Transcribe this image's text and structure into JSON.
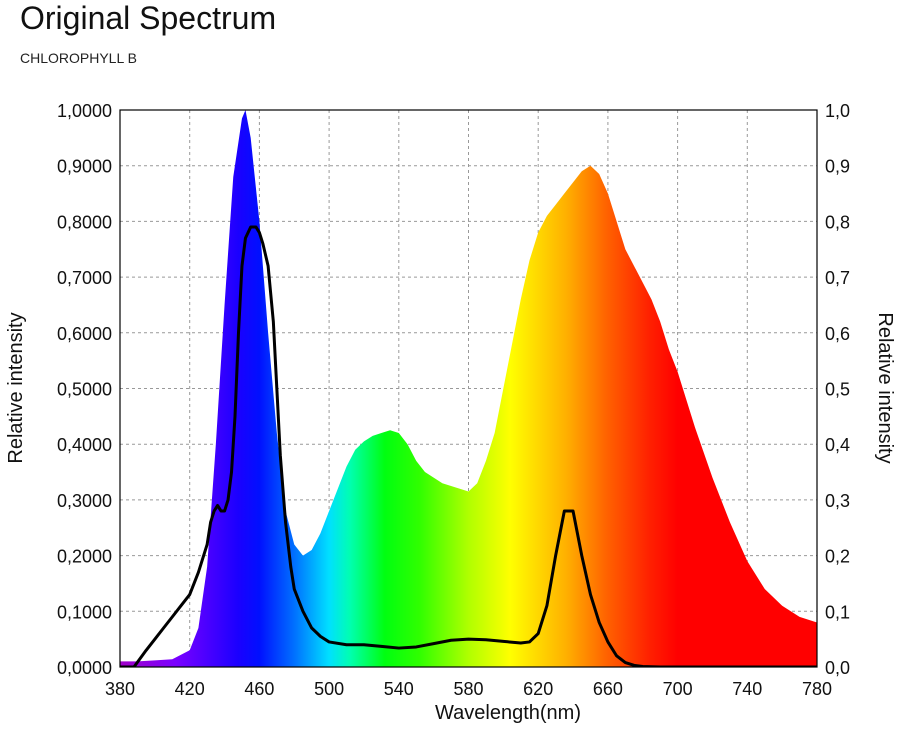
{
  "chart_data": {
    "type": "area",
    "title": "Original Spectrum",
    "subtitle": "CHLOROPHYLL B",
    "xlabel": "Wavelength(nm)",
    "ylabel": "Relative intensity",
    "ylabel_right": "Relative intensity",
    "xlim": [
      380,
      780
    ],
    "ylim": [
      0,
      1
    ],
    "x_ticks": [
      380,
      420,
      460,
      500,
      540,
      580,
      620,
      660,
      700,
      740,
      780
    ],
    "y_ticks_left": [
      "0,0000",
      "0,1000",
      "0,2000",
      "0,3000",
      "0,4000",
      "0,5000",
      "0,6000",
      "0,7000",
      "0,8000",
      "0,9000",
      "1,0000"
    ],
    "y_ticks_right": [
      "0,0",
      "0,1",
      "0,2",
      "0,3",
      "0,4",
      "0,5",
      "0,6",
      "0,7",
      "0,8",
      "0,9",
      "1,0"
    ],
    "grid": true,
    "series": [
      {
        "style": "spectrum-filled-area",
        "x": [
          380,
          390,
          400,
          410,
          420,
          425,
          430,
          435,
          440,
          445,
          450,
          452,
          455,
          460,
          465,
          470,
          475,
          480,
          485,
          490,
          495,
          500,
          505,
          510,
          515,
          520,
          525,
          530,
          535,
          540,
          545,
          550,
          555,
          560,
          565,
          570,
          575,
          580,
          585,
          590,
          595,
          600,
          605,
          610,
          615,
          620,
          625,
          630,
          635,
          640,
          645,
          650,
          655,
          660,
          665,
          670,
          675,
          680,
          685,
          690,
          695,
          700,
          710,
          720,
          730,
          740,
          750,
          760,
          770,
          780
        ],
        "y": [
          0.01,
          0.01,
          0.012,
          0.014,
          0.03,
          0.07,
          0.18,
          0.4,
          0.65,
          0.88,
          0.985,
          1.0,
          0.95,
          0.8,
          0.6,
          0.42,
          0.28,
          0.22,
          0.2,
          0.21,
          0.24,
          0.28,
          0.32,
          0.36,
          0.39,
          0.405,
          0.415,
          0.42,
          0.425,
          0.42,
          0.4,
          0.37,
          0.35,
          0.34,
          0.33,
          0.325,
          0.32,
          0.315,
          0.33,
          0.37,
          0.42,
          0.5,
          0.58,
          0.66,
          0.73,
          0.78,
          0.81,
          0.83,
          0.85,
          0.87,
          0.89,
          0.9,
          0.885,
          0.85,
          0.8,
          0.75,
          0.72,
          0.69,
          0.66,
          0.62,
          0.57,
          0.53,
          0.43,
          0.34,
          0.26,
          0.19,
          0.14,
          0.11,
          0.09,
          0.08
        ]
      },
      {
        "style": "black-line",
        "x": [
          380,
          388,
          395,
          400,
          405,
          410,
          415,
          420,
          425,
          430,
          432,
          434,
          436,
          438,
          440,
          442,
          444,
          446,
          448,
          450,
          452,
          455,
          458,
          460,
          462,
          465,
          468,
          470,
          472,
          475,
          478,
          480,
          485,
          490,
          495,
          500,
          510,
          520,
          530,
          540,
          550,
          560,
          570,
          580,
          590,
          600,
          610,
          615,
          620,
          625,
          630,
          635,
          640,
          645,
          650,
          655,
          660,
          665,
          670,
          675,
          680,
          690,
          700,
          780
        ],
        "y": [
          0.0,
          0.0,
          0.03,
          0.05,
          0.07,
          0.09,
          0.11,
          0.13,
          0.17,
          0.22,
          0.26,
          0.28,
          0.29,
          0.28,
          0.28,
          0.3,
          0.35,
          0.45,
          0.6,
          0.72,
          0.77,
          0.79,
          0.79,
          0.78,
          0.76,
          0.72,
          0.62,
          0.5,
          0.38,
          0.26,
          0.18,
          0.14,
          0.1,
          0.07,
          0.055,
          0.045,
          0.04,
          0.04,
          0.037,
          0.034,
          0.036,
          0.042,
          0.048,
          0.05,
          0.049,
          0.046,
          0.043,
          0.045,
          0.06,
          0.11,
          0.2,
          0.28,
          0.28,
          0.2,
          0.13,
          0.08,
          0.045,
          0.02,
          0.008,
          0.003,
          0.001,
          0.0,
          0.0,
          0.0
        ]
      }
    ]
  }
}
